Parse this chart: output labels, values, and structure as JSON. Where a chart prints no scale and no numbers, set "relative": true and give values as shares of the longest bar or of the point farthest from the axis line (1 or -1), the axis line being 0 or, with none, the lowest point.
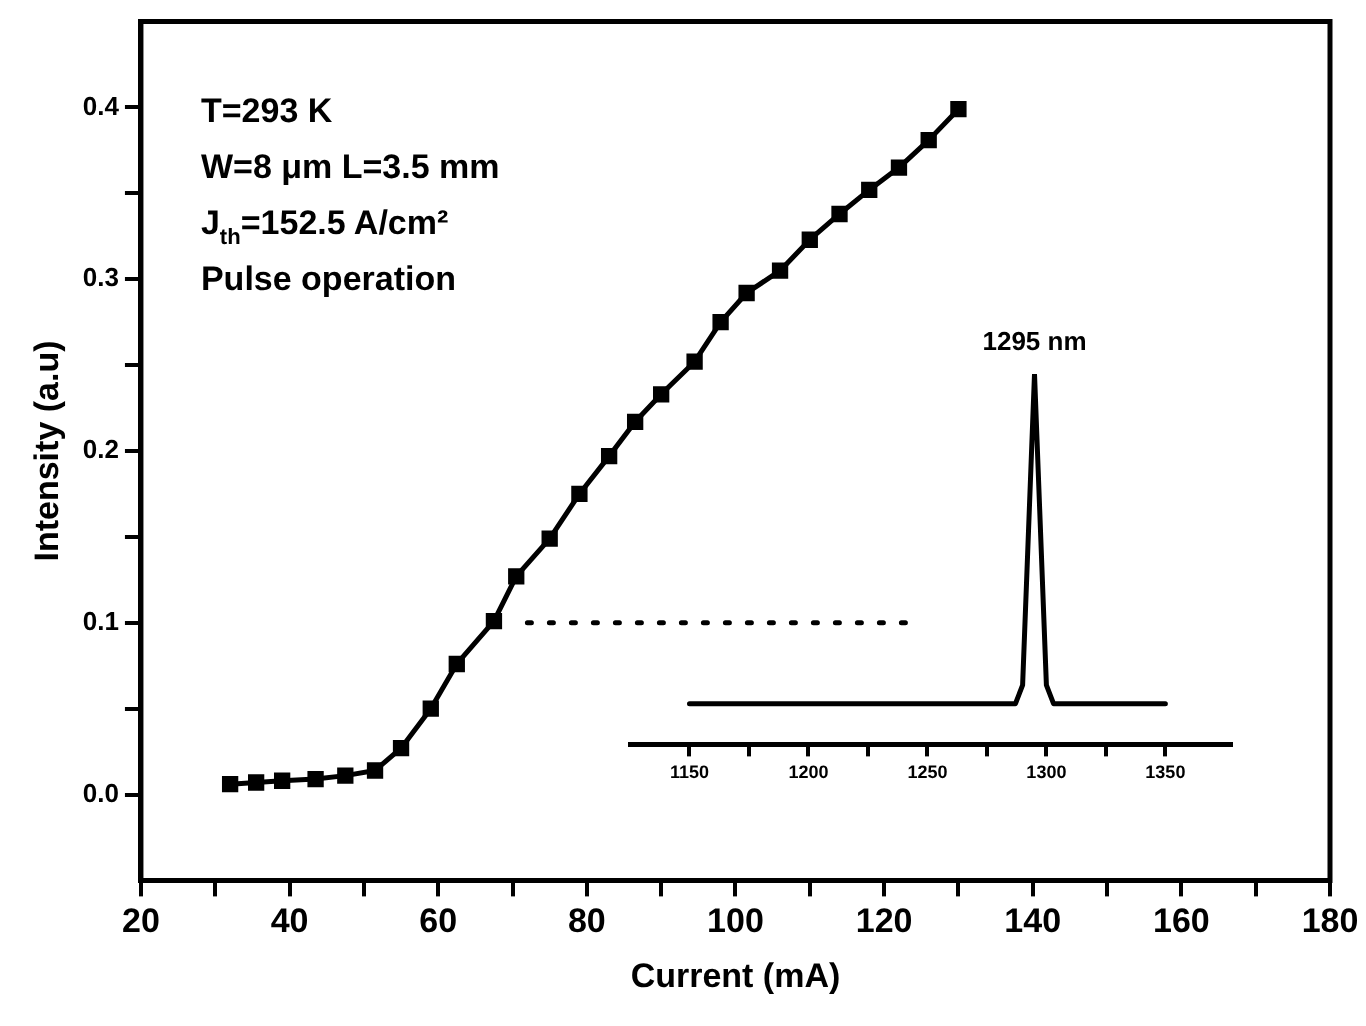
{
  "chart_data": [
    {
      "type": "line",
      "xlabel": "Current (mA)",
      "ylabel": "Intensity (a.u)",
      "xlim": [
        20,
        180
      ],
      "xticks": [
        20,
        {
          "value": 30,
          "label": null
        },
        40,
        {
          "value": 50,
          "label": null
        },
        60,
        {
          "value": 70,
          "label": null
        },
        80,
        {
          "value": 90,
          "label": null
        },
        100,
        {
          "value": 110,
          "label": null
        },
        120,
        {
          "value": 130,
          "label": null
        },
        140,
        {
          "value": 150,
          "label": null
        },
        160,
        {
          "value": 170,
          "label": null
        },
        180
      ],
      "ylim": [
        -0.05,
        0.45
      ],
      "yticks": [
        {
          "value": 0,
          "label": "0.0"
        },
        {
          "value": 0.05,
          "label": null
        },
        0.1,
        {
          "value": 0.15,
          "label": null
        },
        0.2,
        {
          "value": 0.25,
          "label": null
        },
        0.3,
        {
          "value": 0.35,
          "label": null
        },
        0.4
      ],
      "series": [
        {
          "color": "#000000",
          "marker": "square",
          "x": [
            32,
            35.5,
            39,
            43.5,
            47.5,
            51.5,
            55,
            59,
            62.5,
            67.5,
            70.5,
            75,
            79,
            83,
            86.5,
            90,
            94.5,
            98,
            101.5,
            106,
            110,
            114,
            118,
            122,
            126,
            130
          ],
          "values": [
            0.006,
            0.007,
            0.008,
            0.009,
            0.011,
            0.014,
            0.027,
            0.05,
            0.076,
            0.101,
            0.127,
            0.149,
            0.175,
            0.197,
            0.217,
            0.233,
            0.252,
            0.275,
            0.292,
            0.305,
            0.323,
            0.338,
            0.352,
            0.365,
            0.381,
            0.399
          ]
        },
        {
          "color": "#000000",
          "marker": "none",
          "line_style": "dotted",
          "x": [
            72,
            124
          ],
          "values": [
            0.1,
            0.1
          ]
        }
      ],
      "annotations": [
        "T=293 K",
        "W=8 μm L=3.5 mm",
        "J$_{th}$=152.5 A/cm²",
        "Pulse operation"
      ]
    },
    {
      "type": "line",
      "relative": true,
      "tick_labels": "x",
      "xlim": [
        1125,
        1378
      ],
      "xticks": [
        1150,
        {
          "value": 1175,
          "label": null
        },
        1200,
        {
          "value": 1225,
          "label": null
        },
        1250,
        {
          "value": 1275,
          "label": null
        },
        1300,
        {
          "value": 1325,
          "label": null
        },
        1350
      ],
      "series": [
        {
          "color": "#000000",
          "x": [
            1150,
            1287,
            1290,
            1295,
            1300,
            1303,
            1350
          ],
          "values": [
            0.11,
            0.11,
            0.16,
            1,
            0.16,
            0.11,
            0.11
          ]
        }
      ],
      "annotations": [
        {
          "text": "1295 nm",
          "x": 1295,
          "y": 1
        }
      ]
    }
  ]
}
